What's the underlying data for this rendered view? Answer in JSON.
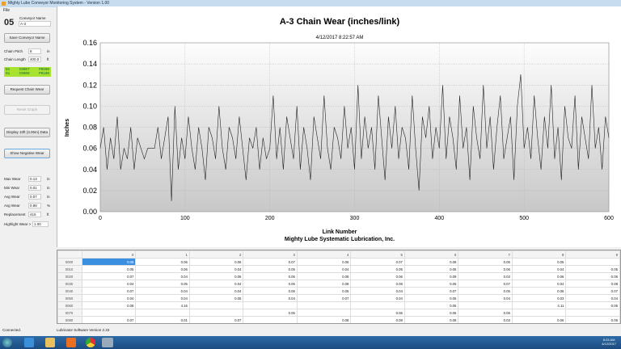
{
  "window": {
    "title": "Mighty Lube Conveyor Monitoring System - Version 1.00",
    "menu_file": "File"
  },
  "left": {
    "conveyor_number": "05",
    "conveyor_name_label": "Conveyor Name",
    "conveyor_name_value": "A-3",
    "save_name": "Save Conveyor Name",
    "chain_pitch_label": "Chain Pitch",
    "chain_pitch_value": "8",
    "chain_pitch_unit": "in",
    "chain_length_label": "Chain Length",
    "chain_length_value": "400.0",
    "chain_length_unit": "ft",
    "status_line1": [
      "N1",
      "C0007",
      "P0600"
    ],
    "status_line2": [
      "01",
      "C0000",
      "P0100"
    ],
    "status_color": "#a6e22e",
    "request": "Request Chain Wear",
    "reset": "Reset Graph",
    "display": "Display 10ft (3.05m) Data",
    "show_negative": "Show Negative Wear",
    "stats": [
      {
        "label": "Max Wear",
        "value": "0.13",
        "unit": "in"
      },
      {
        "label": "Min Wear",
        "value": "0.01",
        "unit": "in"
      },
      {
        "label": "Avg Wear",
        "value": "0.07",
        "unit": "in"
      },
      {
        "label": "Avg Wear",
        "value": "0.88",
        "unit": "%"
      },
      {
        "label": "Replacement",
        "value": "416",
        "unit": "ft"
      }
    ],
    "highlight_label": "Highlight Wear >",
    "highlight_value": "1.00"
  },
  "chart_data": {
    "type": "line",
    "title": "A-3 Chain Wear (inches/link)",
    "subtitle": "4/12/2017 8:22:57 AM",
    "xlabel": "Link Number",
    "footer": "Mighty Lube Systematic Lubrication, Inc.",
    "ylabel": "Inches",
    "xlim": [
      0,
      600
    ],
    "ylim": [
      0,
      0.16
    ],
    "grid": true,
    "xticks": [
      "0",
      "100",
      "200",
      "300",
      "400",
      "500",
      "600"
    ],
    "yticks": [
      "0.00",
      "0.02",
      "0.04",
      "0.06",
      "0.08",
      "0.10",
      "0.12",
      "0.14",
      "0.16"
    ],
    "x_step": 4,
    "values": [
      0.06,
      0.08,
      0.04,
      0.07,
      0.05,
      0.09,
      0.04,
      0.06,
      0.05,
      0.08,
      0.04,
      0.07,
      0.06,
      0.05,
      0.06,
      0.06,
      0.06,
      0.08,
      0.05,
      0.07,
      0.09,
      0.01,
      0.1,
      0.04,
      0.07,
      0.05,
      0.09,
      0.06,
      0.04,
      0.08,
      0.06,
      0.03,
      0.08,
      0.07,
      0.05,
      0.1,
      0.06,
      0.04,
      0.08,
      0.07,
      0.05,
      0.09,
      0.06,
      0.03,
      0.07,
      0.06,
      0.08,
      0.04,
      0.07,
      0.05,
      0.06,
      0.11,
      0.05,
      0.08,
      0.04,
      0.09,
      0.07,
      0.05,
      0.1,
      0.04,
      0.08,
      0.06,
      0.03,
      0.09,
      0.07,
      0.05,
      0.11,
      0.06,
      0.04,
      0.08,
      0.07,
      0.05,
      0.1,
      0.06,
      0.08,
      0.04,
      0.12,
      0.05,
      0.09,
      0.06,
      0.08,
      0.04,
      0.11,
      0.07,
      0.03,
      0.09,
      0.06,
      0.1,
      0.05,
      0.08,
      0.07,
      0.04,
      0.11,
      0.06,
      0.02,
      0.09,
      0.07,
      0.1,
      0.05,
      0.08,
      0.06,
      0.12,
      0.05,
      0.09,
      0.07,
      0.04,
      0.11,
      0.06,
      0.08,
      0.03,
      0.1,
      0.07,
      0.05,
      0.12,
      0.06,
      0.09,
      0.04,
      0.08,
      0.11,
      0.05,
      0.07,
      0.09,
      0.03,
      0.1,
      0.13,
      0.06,
      0.08,
      0.05,
      0.11,
      0.07,
      0.04,
      0.09,
      0.06,
      0.12,
      0.05,
      0.08,
      0.03,
      0.1,
      0.07,
      0.06,
      0.11,
      0.04,
      0.09,
      0.07,
      0.05,
      0.12,
      0.06,
      0.08,
      0.04,
      0.09,
      0.07
    ]
  },
  "table": {
    "columns": [
      "0",
      "1",
      "2",
      "3",
      "4",
      "5",
      "6",
      "7",
      "8",
      "9"
    ],
    "rows": [
      {
        "id": "0000",
        "cells": [
          "0.08",
          "0.06",
          "0.06",
          "0.07",
          "0.06",
          "0.07",
          "0.08",
          "0.05",
          "0.05",
          ""
        ]
      },
      {
        "id": "0010",
        "cells": [
          "0.05",
          "0.06",
          "0.04",
          "0.05",
          "0.04",
          "0.05",
          "0.05",
          "0.06",
          "0.04",
          "0.05"
        ]
      },
      {
        "id": "0020",
        "cells": [
          "0.07",
          "0.04",
          "0.06",
          "0.06",
          "0.08",
          "0.06",
          "0.09",
          "0.03",
          "0.06",
          "0.06"
        ]
      },
      {
        "id": "0030",
        "cells": [
          "0.04",
          "0.05",
          "0.04",
          "0.06",
          "0.08",
          "0.08",
          "0.05",
          "0.07",
          "0.04",
          "0.08"
        ]
      },
      {
        "id": "0040",
        "cells": [
          "0.07",
          "0.04",
          "0.04",
          "0.06",
          "0.05",
          "0.04",
          "0.07",
          "0.05",
          "0.06",
          "0.07"
        ]
      },
      {
        "id": "0050",
        "cells": [
          "0.04",
          "0.04",
          "0.05",
          "0.04",
          "0.07",
          "0.04",
          "0.05",
          "0.04",
          "0.03",
          "0.04"
        ]
      },
      {
        "id": "0060",
        "cells": [
          "0.08",
          "4.16",
          "",
          "",
          "",
          "",
          "0.05",
          "",
          "4.11",
          "0.06"
        ]
      },
      {
        "id": "0070",
        "cells": [
          "",
          "",
          "",
          "0.06",
          "",
          "0.06",
          "0.06",
          "0.06",
          "",
          ""
        ]
      },
      {
        "id": "0080",
        "cells": [
          "0.07",
          "0.01",
          "0.07",
          "",
          "0.08",
          "0.08",
          "0.08",
          "0.03",
          "0.06",
          "0.06"
        ]
      }
    ]
  },
  "status": {
    "connection": "Connected.",
    "version": "Lubricator Software Version 2.33"
  },
  "taskbar": {
    "time": "8:23 AM",
    "date": "4/12/2017"
  }
}
